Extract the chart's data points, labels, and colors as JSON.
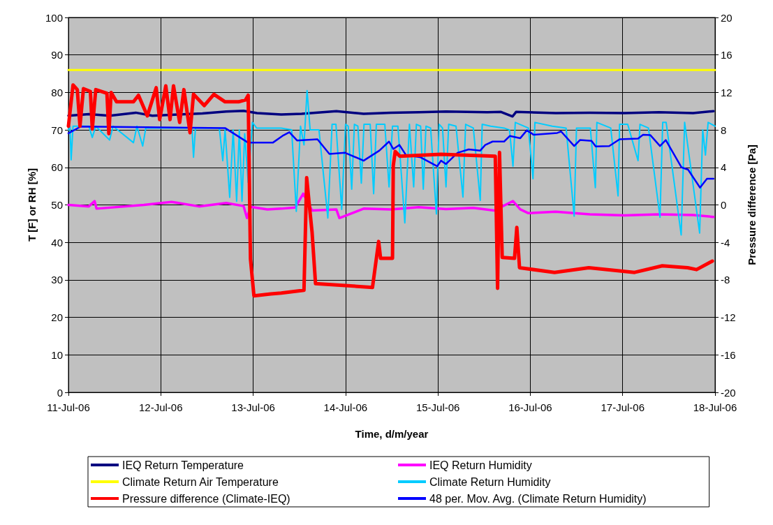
{
  "chart_data": {
    "type": "line",
    "xlabel": "Time, d/m/year",
    "ylabel": "T [F] or RH [%]",
    "y2label": "Pressure difference [Pa]",
    "xlim": [
      "--07-11",
      "--07-18"
    ],
    "xticks": [
      {
        "value": "--07-11",
        "label": "11-Jul-06"
      },
      {
        "value": "--07-12",
        "label": "12-Jul-06"
      },
      {
        "value": "--07-13",
        "label": "13-Jul-06"
      },
      {
        "value": "--07-14",
        "label": "14-Jul-06"
      },
      {
        "value": "--07-15",
        "label": "15-Jul-06"
      },
      {
        "value": "--07-16",
        "label": "16-Jul-06"
      },
      {
        "value": "--07-17",
        "label": "17-Jul-06"
      },
      {
        "value": "--07-18",
        "label": "18-Jul-06"
      }
    ],
    "ylim": [
      0,
      100
    ],
    "yticks": [
      0,
      10,
      20,
      30,
      40,
      50,
      60,
      70,
      80,
      90,
      100
    ],
    "y2lim": [
      -20,
      20
    ],
    "y2ticks": [
      -20,
      -16,
      -12,
      -8,
      -4,
      0,
      4,
      8,
      12,
      16,
      20
    ],
    "grid": true,
    "legend": "bottom",
    "marker": "none",
    "line_style": "solid",
    "series": [
      {
        "name": "IEQ Return Temperature",
        "color": "#000080",
        "x": [
          "--07-11T00:00",
          "--07-11T05:18",
          "--07-11T10:42",
          "--07-11T17:30",
          "--07-11T21:48",
          "--07-12T04:30",
          "--07-12T10:48",
          "--07-12T17:00",
          "--07-12T21:30",
          "--07-13T01:00",
          "--07-13T07:18",
          "--07-13T12:36",
          "--07-13T21:36",
          "--07-14T04:42",
          "--07-14T11:48",
          "--07-14T19:00",
          "--07-15T02:06",
          "--07-15T12:48",
          "--07-15T16:24",
          "--07-15T19:24",
          "--07-15T20:18",
          "--07-16T06:36",
          "--07-16T15:30",
          "--07-17T00:30",
          "--07-17T09:24",
          "--07-17T18:18",
          "--07-17T23:36"
        ],
        "values": [
          73.8,
          74.2,
          73.8,
          74.6,
          73.8,
          74.1,
          74.4,
          74.9,
          75.1,
          74.5,
          74.1,
          74.3,
          75,
          74.3,
          74.6,
          74.7,
          74.9,
          74.7,
          74.8,
          73.6,
          74.8,
          74.5,
          74.6,
          74.5,
          74.7,
          74.5,
          75
        ]
      },
      {
        "name": "IEQ Return Humidity",
        "color": "#ff00ff",
        "x": [
          "--07-11T00:00",
          "--07-11T05:18",
          "--07-11T06:48",
          "--07-11T07:18",
          "--07-11T19:36",
          "--07-12T02:48",
          "--07-12T09:54",
          "--07-12T17:00",
          "--07-12T21:30",
          "--07-12T22:24",
          "--07-12T23:18",
          "--07-13T03:42",
          "--07-13T07:18",
          "--07-13T10:54",
          "--07-13T13:00",
          "--07-13T15:18",
          "--07-13T21:36",
          "--07-13T22:24",
          "--07-14T04:42",
          "--07-14T11:48",
          "--07-14T19:00",
          "--07-15T02:06",
          "--07-15T09:12",
          "--07-15T14:36",
          "--07-15T19:30",
          "--07-15T21:24",
          "--07-15T23:30",
          "--07-16T06:36",
          "--07-16T15:30",
          "--07-17T00:30",
          "--07-17T09:24",
          "--07-17T18:18",
          "--07-17T23:36"
        ],
        "values": [
          50,
          49.6,
          51,
          49,
          50,
          50.8,
          49.6,
          50.5,
          49.7,
          46.5,
          49.5,
          48.8,
          49,
          49.3,
          53,
          48.5,
          48.8,
          46.5,
          49,
          48.8,
          49.4,
          48.9,
          49.2,
          48.5,
          51,
          48.8,
          47.8,
          48.2,
          47.5,
          47.2,
          47.5,
          47.3,
          46.8
        ]
      },
      {
        "name": "Climate Return Air Temperature",
        "color": "#ffff00",
        "x": [
          "--07-11T00:00",
          "--07-18T00:00"
        ],
        "values": [
          86,
          86
        ]
      },
      {
        "name": "Climate Return Humidity",
        "color": "#00ccff",
        "x": [
          "--07-11T00:00",
          "--07-11T00:24",
          "--07-11T00:42",
          "--07-11T01:12",
          "--07-11T05:18",
          "--07-11T06:12",
          "--07-11T07:06",
          "--07-11T10:42",
          "--07-11T11:36",
          "--07-11T16:54",
          "--07-11T17:48",
          "--07-11T19:18",
          "--07-11T20:06",
          "--07-12T08:06",
          "--07-12T08:30",
          "--07-12T09:00",
          "--07-12T15:12",
          "--07-12T16:06",
          "--07-12T16:42",
          "--07-12T17:54",
          "--07-12T18:48",
          "--07-12T19:42",
          "--07-12T20:24",
          "--07-12T21:06",
          "--07-12T21:48",
          "--07-12T22:42",
          "--07-12T23:48",
          "--07-13T00:54",
          "--07-13T07:18",
          "--07-13T10:00",
          "--07-13T11:12",
          "--07-13T12:18",
          "--07-13T13:12",
          "--07-13T14:00",
          "--07-13T14:48",
          "--07-13T17:06",
          "--07-13T19:24",
          "--07-13T20:30",
          "--07-13T21:30",
          "--07-13T23:00",
          "--07-14T00:00",
          "--07-14T00:42",
          "--07-14T01:36",
          "--07-14T02:18",
          "--07-14T03:12",
          "--07-14T04:06",
          "--07-14T04:48",
          "--07-14T06:24",
          "--07-14T07:18",
          "--07-14T08:00",
          "--07-14T10:12",
          "--07-14T11:18",
          "--07-14T12:12",
          "--07-14T13:36",
          "--07-14T15:24",
          "--07-14T16:36",
          "--07-14T17:42",
          "--07-14T18:24",
          "--07-14T19:30",
          "--07-14T20:12",
          "--07-14T20:54",
          "--07-14T22:06",
          "--07-14T23:36",
          "--07-15T00:18",
          "--07-15T01:12",
          "--07-15T02:06",
          "--07-15T02:48",
          "--07-15T04:42",
          "--07-15T06:30",
          "--07-15T07:12",
          "--07-15T09:12",
          "--07-15T11:00",
          "--07-15T11:30",
          "--07-15T13:42",
          "--07-15T17:12",
          "--07-15T18:36",
          "--07-15T19:30",
          "--07-15T20:06",
          "--07-15T23:30",
          "--07-16T00:42",
          "--07-16T01:12",
          "--07-16T05:42",
          "--07-16T09:18",
          "--07-16T11:24",
          "--07-16T12:00",
          "--07-16T15:36",
          "--07-16T16:54",
          "--07-16T17:18",
          "--07-16T20:54",
          "--07-16T22:48",
          "--07-16T23:12",
          "--07-17T01:18",
          "--07-17T04:00",
          "--07-17T04:30",
          "--07-17T06:42",
          "--07-17T09:42",
          "--07-17T10:24",
          "--07-17T11:18",
          "--07-17T15:12",
          "--07-17T16:06",
          "--07-17T20:00",
          "--07-17T20:48",
          "--07-17T21:30",
          "--07-17T22:12",
          "--07-18T00:00"
        ],
        "values": [
          70,
          71,
          62,
          71,
          71,
          68,
          71,
          67.3,
          71,
          66.6,
          71,
          65.7,
          70.5,
          70.5,
          62.7,
          70.5,
          70.5,
          61.8,
          70,
          52,
          70,
          51,
          70,
          51,
          69,
          56,
          72,
          70.5,
          70.5,
          70,
          48.3,
          71,
          66,
          80.5,
          70,
          70,
          46.5,
          71.5,
          71.5,
          48.8,
          71.5,
          71,
          54.2,
          71.5,
          71,
          55.8,
          71.5,
          71.5,
          53,
          71.5,
          71.5,
          54.8,
          71,
          71,
          45.2,
          71.5,
          54.8,
          71.5,
          71,
          54.2,
          71,
          70.5,
          47.6,
          71.5,
          70.5,
          54.8,
          71.5,
          71,
          52.1,
          71.5,
          70.5,
          51.2,
          71.5,
          71,
          70.5,
          70,
          60.3,
          72,
          70.5,
          57,
          72,
          71,
          70.5,
          47,
          70.5,
          70.5,
          54.6,
          72,
          70.5,
          52.4,
          71.5,
          71.5,
          61.8,
          71.5,
          70.5,
          46.7,
          72,
          72,
          42,
          72,
          42.5,
          70,
          63.3,
          72,
          71
        ]
      },
      {
        "name": "Pressure difference (Climate-IEQ)",
        "color": "#ff0000",
        "axis": "y2",
        "x": [
          "--07-11T00:00",
          "--07-11T01:12",
          "--07-11T02:18",
          "--07-11T03:00",
          "--07-11T03:54",
          "--07-11T05:42",
          "--07-11T06:12",
          "--07-11T07:06",
          "--07-11T10:00",
          "--07-11T10:30",
          "--07-11T11:06",
          "--07-11T12:30",
          "--07-11T16:54",
          "--07-11T18:12",
          "--07-11T20:30",
          "--07-11T22:48",
          "--07-11T23:42",
          "--07-12T01:18",
          "--07-12T02:24",
          "--07-12T03:18",
          "--07-12T04:54",
          "--07-12T06:00",
          "--07-12T07:36",
          "--07-12T08:30",
          "--07-12T11:18",
          "--07-12T13:48",
          "--07-12T16:42",
          "--07-12T20:12",
          "--07-12T22:00",
          "--07-12T22:42",
          "--07-12T23:18",
          "--07-13T00:12",
          "--07-13T04:36",
          "--07-13T07:18",
          "--07-13T13:12",
          "--07-13T13:54",
          "--07-13T14:48",
          "--07-13T15:18",
          "--07-13T16:12",
          "--07-14T07:00",
          "--07-14T08:36",
          "--07-14T09:06",
          "--07-14T12:12",
          "--07-14T12:24",
          "--07-14T12:54",
          "--07-14T14:06",
          "--07-15T00:48",
          "--07-15T14:54",
          "--07-15T15:30",
          "--07-15T16:00",
          "--07-15T16:42",
          "--07-15T19:54",
          "--07-15T20:30",
          "--07-15T21:12",
          "--07-16T06:18",
          "--07-16T15:12",
          "--07-17T03:06",
          "--07-17T10:18",
          "--07-17T16:54",
          "--07-17T19:12",
          "--07-17T23:18"
        ],
        "values": [
          8.4,
          12.8,
          12.3,
          8.4,
          12.4,
          12.1,
          8.1,
          12.3,
          11.9,
          7.6,
          12,
          11,
          11,
          11.7,
          9.5,
          12.5,
          9.1,
          12.7,
          9.1,
          12.7,
          8.8,
          12.3,
          7.7,
          11.8,
          10.6,
          11.8,
          11,
          11,
          11.2,
          11.7,
          -5.8,
          -9.7,
          -9.5,
          -9.4,
          -9.1,
          2.9,
          -0.9,
          -2.9,
          -8.4,
          -8.8,
          -3.9,
          -5.7,
          -5.7,
          4.2,
          5.7,
          5.2,
          5.4,
          5.2,
          -8.9,
          5.6,
          -5.6,
          -5.7,
          -2.4,
          -6.7,
          -7.2,
          -6.7,
          -7.2,
          -6.5,
          -6.7,
          -6.9,
          -6
        ]
      },
      {
        "name": "48 per. Mov. Avg. (Climate Return Humidity)",
        "color": "#0000ff",
        "x": [
          "--07-11T00:00",
          "--07-11T03:12",
          "--07-12T16:42",
          "--07-12T22:42",
          "--07-13T05:06",
          "--07-13T07:36",
          "--07-13T09:24",
          "--07-13T11:24",
          "--07-13T16:42",
          "--07-13T19:48",
          "--07-13T23:54",
          "--07-14T04:42",
          "--07-14T08:48",
          "--07-14T11:18",
          "--07-14T12:24",
          "--07-14T14:00",
          "--07-14T15:42",
          "--07-14T19:30",
          "--07-14T23:48",
          "--07-15T00:48",
          "--07-15T02:06",
          "--07-15T05:06",
          "--07-15T08:00",
          "--07-15T11:00",
          "--07-15T12:18",
          "--07-15T14:12",
          "--07-15T17:12",
          "--07-15T18:42",
          "--07-15T21:24",
          "--07-15T23:06",
          "--07-16T00:54",
          "--07-16T07:00",
          "--07-16T08:00",
          "--07-16T11:24",
          "--07-16T12:54",
          "--07-16T15:54",
          "--07-16T17:00",
          "--07-16T20:30",
          "--07-16T23:12",
          "--07-17T04:00",
          "--07-17T05:18",
          "--07-17T07:12",
          "--07-17T09:42",
          "--07-17T11:12",
          "--07-17T15:18",
          "--07-17T17:00",
          "--07-17T20:06",
          "--07-17T21:54",
          "--07-17T23:36"
        ],
        "values": [
          69.1,
          70.9,
          70.5,
          66.6,
          66.6,
          68.4,
          69.4,
          67.2,
          67.5,
          63.6,
          63.9,
          61.8,
          64.5,
          66.9,
          64.9,
          66,
          63.3,
          62.7,
          60.3,
          61.8,
          60.9,
          63.9,
          64.8,
          64.5,
          66,
          66.9,
          66.9,
          68.4,
          67.8,
          69.9,
          68.7,
          69.2,
          69.6,
          65.7,
          67.3,
          67.1,
          65.6,
          65.7,
          67.5,
          67.7,
          68.7,
          68.6,
          65.7,
          67.3,
          60,
          59.4,
          54.6,
          57,
          57
        ]
      }
    ]
  }
}
